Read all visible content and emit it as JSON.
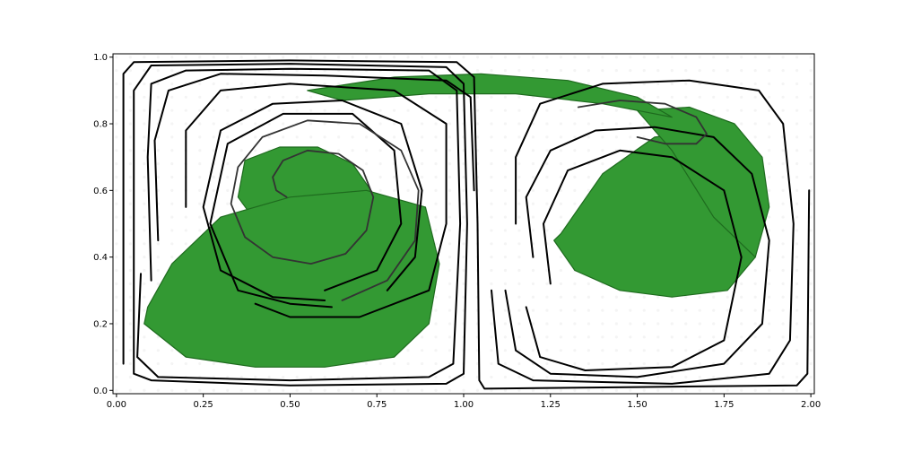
{
  "chart_data": {
    "type": "scatter",
    "title": "",
    "xlabel": "",
    "ylabel": "",
    "xlim": [
      -0.01,
      2.01
    ],
    "ylim": [
      -0.01,
      1.01
    ],
    "grid": false,
    "x_ticks": [
      "0.00",
      "0.25",
      "0.50",
      "0.75",
      "1.00",
      "1.25",
      "1.50",
      "1.75",
      "2.00"
    ],
    "y_ticks": [
      "0.0",
      "0.2",
      "0.4",
      "0.6",
      "0.8",
      "1.0"
    ],
    "colors": {
      "tracer": "#339933",
      "tracer_edge": "#1e6b1e",
      "background_particles": "#f4f4f4",
      "boundary_curve": "#000000",
      "spiral_curve": "#333333"
    },
    "series": [
      {
        "kind": "boundary_curve",
        "points": [
          [
            0.02,
            0.08
          ],
          [
            0.02,
            0.95
          ],
          [
            0.05,
            0.985
          ],
          [
            0.5,
            0.99
          ],
          [
            0.98,
            0.985
          ],
          [
            1.03,
            0.94
          ],
          [
            1.04,
            0.5
          ],
          [
            1.045,
            0.03
          ],
          [
            1.06,
            0.005
          ],
          [
            1.5,
            0.01
          ],
          [
            1.96,
            0.015
          ],
          [
            1.99,
            0.05
          ],
          [
            1.995,
            0.6
          ]
        ]
      },
      {
        "kind": "boundary_curve",
        "points": [
          [
            0.05,
            0.05
          ],
          [
            0.05,
            0.9
          ],
          [
            0.1,
            0.975
          ],
          [
            0.5,
            0.98
          ],
          [
            0.95,
            0.97
          ],
          [
            1.0,
            0.92
          ],
          [
            1.01,
            0.5
          ],
          [
            1.0,
            0.05
          ],
          [
            0.95,
            0.02
          ],
          [
            0.5,
            0.015
          ],
          [
            0.1,
            0.03
          ],
          [
            0.05,
            0.05
          ]
        ]
      },
      {
        "kind": "boundary_curve",
        "points": [
          [
            0.1,
            0.33
          ],
          [
            0.09,
            0.7
          ],
          [
            0.1,
            0.92
          ],
          [
            0.2,
            0.96
          ],
          [
            0.5,
            0.965
          ],
          [
            0.9,
            0.96
          ],
          [
            0.98,
            0.9
          ],
          [
            0.99,
            0.5
          ],
          [
            0.97,
            0.08
          ],
          [
            0.9,
            0.04
          ],
          [
            0.5,
            0.03
          ],
          [
            0.12,
            0.04
          ],
          [
            0.06,
            0.1
          ],
          [
            0.07,
            0.35
          ]
        ]
      },
      {
        "kind": "boundary_curve",
        "points": [
          [
            0.12,
            0.45
          ],
          [
            0.11,
            0.75
          ],
          [
            0.15,
            0.9
          ],
          [
            0.3,
            0.95
          ],
          [
            0.6,
            0.945
          ],
          [
            0.95,
            0.93
          ],
          [
            1.02,
            0.88
          ],
          [
            1.03,
            0.6
          ]
        ]
      },
      {
        "kind": "boundary_curve",
        "points": [
          [
            0.2,
            0.55
          ],
          [
            0.2,
            0.78
          ],
          [
            0.3,
            0.9
          ],
          [
            0.5,
            0.92
          ],
          [
            0.8,
            0.9
          ],
          [
            0.95,
            0.8
          ],
          [
            0.95,
            0.5
          ],
          [
            0.9,
            0.3
          ],
          [
            0.7,
            0.22
          ],
          [
            0.5,
            0.22
          ],
          [
            0.4,
            0.26
          ]
        ]
      },
      {
        "kind": "boundary_curve",
        "points": [
          [
            0.6,
            0.27
          ],
          [
            0.45,
            0.28
          ],
          [
            0.3,
            0.36
          ],
          [
            0.25,
            0.55
          ],
          [
            0.3,
            0.78
          ],
          [
            0.45,
            0.86
          ],
          [
            0.65,
            0.87
          ],
          [
            0.82,
            0.8
          ],
          [
            0.88,
            0.6
          ],
          [
            0.86,
            0.4
          ],
          [
            0.78,
            0.3
          ]
        ]
      },
      {
        "kind": "boundary_curve",
        "points": [
          [
            0.62,
            0.25
          ],
          [
            0.5,
            0.26
          ],
          [
            0.35,
            0.3
          ],
          [
            0.27,
            0.5
          ],
          [
            0.32,
            0.74
          ],
          [
            0.48,
            0.83
          ],
          [
            0.68,
            0.83
          ],
          [
            0.8,
            0.72
          ],
          [
            0.82,
            0.5
          ],
          [
            0.75,
            0.36
          ],
          [
            0.6,
            0.3
          ]
        ]
      },
      {
        "kind": "boundary_curve",
        "points": [
          [
            1.25,
            0.32
          ],
          [
            1.23,
            0.5
          ],
          [
            1.3,
            0.66
          ],
          [
            1.45,
            0.72
          ],
          [
            1.6,
            0.7
          ],
          [
            1.75,
            0.6
          ],
          [
            1.8,
            0.4
          ],
          [
            1.75,
            0.15
          ],
          [
            1.6,
            0.07
          ],
          [
            1.35,
            0.06
          ],
          [
            1.22,
            0.1
          ],
          [
            1.18,
            0.25
          ]
        ]
      },
      {
        "kind": "boundary_curve",
        "points": [
          [
            1.2,
            0.4
          ],
          [
            1.18,
            0.58
          ],
          [
            1.25,
            0.72
          ],
          [
            1.38,
            0.78
          ],
          [
            1.55,
            0.79
          ],
          [
            1.72,
            0.76
          ],
          [
            1.83,
            0.65
          ],
          [
            1.88,
            0.45
          ],
          [
            1.86,
            0.2
          ],
          [
            1.75,
            0.08
          ],
          [
            1.5,
            0.04
          ],
          [
            1.25,
            0.05
          ],
          [
            1.15,
            0.12
          ],
          [
            1.12,
            0.3
          ]
        ]
      },
      {
        "kind": "boundary_curve",
        "points": [
          [
            1.15,
            0.5
          ],
          [
            1.15,
            0.7
          ],
          [
            1.22,
            0.86
          ],
          [
            1.4,
            0.92
          ],
          [
            1.65,
            0.93
          ],
          [
            1.85,
            0.9
          ],
          [
            1.92,
            0.8
          ],
          [
            1.95,
            0.5
          ],
          [
            1.94,
            0.15
          ],
          [
            1.88,
            0.05
          ],
          [
            1.6,
            0.02
          ],
          [
            1.2,
            0.03
          ],
          [
            1.1,
            0.08
          ],
          [
            1.08,
            0.3
          ]
        ]
      },
      {
        "kind": "spiral_curve",
        "points": [
          [
            0.49,
            0.58
          ],
          [
            0.46,
            0.6
          ],
          [
            0.45,
            0.64
          ],
          [
            0.48,
            0.69
          ],
          [
            0.55,
            0.72
          ],
          [
            0.64,
            0.71
          ],
          [
            0.71,
            0.66
          ],
          [
            0.74,
            0.58
          ],
          [
            0.72,
            0.48
          ],
          [
            0.66,
            0.41
          ],
          [
            0.56,
            0.38
          ],
          [
            0.45,
            0.4
          ],
          [
            0.37,
            0.46
          ],
          [
            0.33,
            0.56
          ],
          [
            0.35,
            0.67
          ],
          [
            0.42,
            0.76
          ],
          [
            0.55,
            0.81
          ],
          [
            0.7,
            0.8
          ],
          [
            0.82,
            0.72
          ],
          [
            0.87,
            0.6
          ],
          [
            0.86,
            0.45
          ],
          [
            0.78,
            0.33
          ],
          [
            0.65,
            0.27
          ]
        ]
      },
      {
        "kind": "spiral_curve",
        "points": [
          [
            1.33,
            0.85
          ],
          [
            1.45,
            0.87
          ],
          [
            1.58,
            0.86
          ],
          [
            1.67,
            0.82
          ],
          [
            1.7,
            0.77
          ],
          [
            1.67,
            0.74
          ],
          [
            1.58,
            0.74
          ],
          [
            1.5,
            0.76
          ]
        ]
      }
    ],
    "blobs": [
      {
        "region": "left-vortex-inner",
        "x": [
          0.37,
          0.47,
          0.58,
          0.68,
          0.74,
          0.72,
          0.64,
          0.53,
          0.42,
          0.35
        ],
        "y": [
          0.69,
          0.73,
          0.73,
          0.68,
          0.59,
          0.5,
          0.44,
          0.43,
          0.48,
          0.58
        ]
      },
      {
        "region": "left-lower-arc",
        "x": [
          0.08,
          0.2,
          0.4,
          0.6,
          0.8,
          0.9,
          0.93,
          0.89,
          0.72,
          0.5,
          0.3,
          0.16,
          0.09
        ],
        "y": [
          0.2,
          0.1,
          0.07,
          0.07,
          0.1,
          0.2,
          0.38,
          0.55,
          0.6,
          0.58,
          0.52,
          0.38,
          0.25
        ]
      },
      {
        "region": "right-vortex",
        "x": [
          1.28,
          1.4,
          1.55,
          1.7,
          1.8,
          1.86,
          1.84,
          1.76,
          1.6,
          1.45,
          1.32,
          1.26
        ],
        "y": [
          0.47,
          0.65,
          0.76,
          0.78,
          0.7,
          0.55,
          0.4,
          0.3,
          0.28,
          0.3,
          0.36,
          0.45
        ]
      },
      {
        "region": "right-upper-band",
        "x": [
          1.5,
          1.65,
          1.78,
          1.86,
          1.88,
          1.84,
          1.72,
          1.6
        ],
        "y": [
          0.84,
          0.85,
          0.8,
          0.7,
          0.55,
          0.4,
          0.52,
          0.72
        ]
      },
      {
        "region": "top-band",
        "x": [
          0.55,
          0.8,
          1.05,
          1.3,
          1.5,
          1.6,
          1.4,
          1.15,
          0.9,
          0.65
        ],
        "y": [
          0.9,
          0.94,
          0.95,
          0.93,
          0.88,
          0.82,
          0.86,
          0.89,
          0.89,
          0.87
        ]
      }
    ]
  }
}
